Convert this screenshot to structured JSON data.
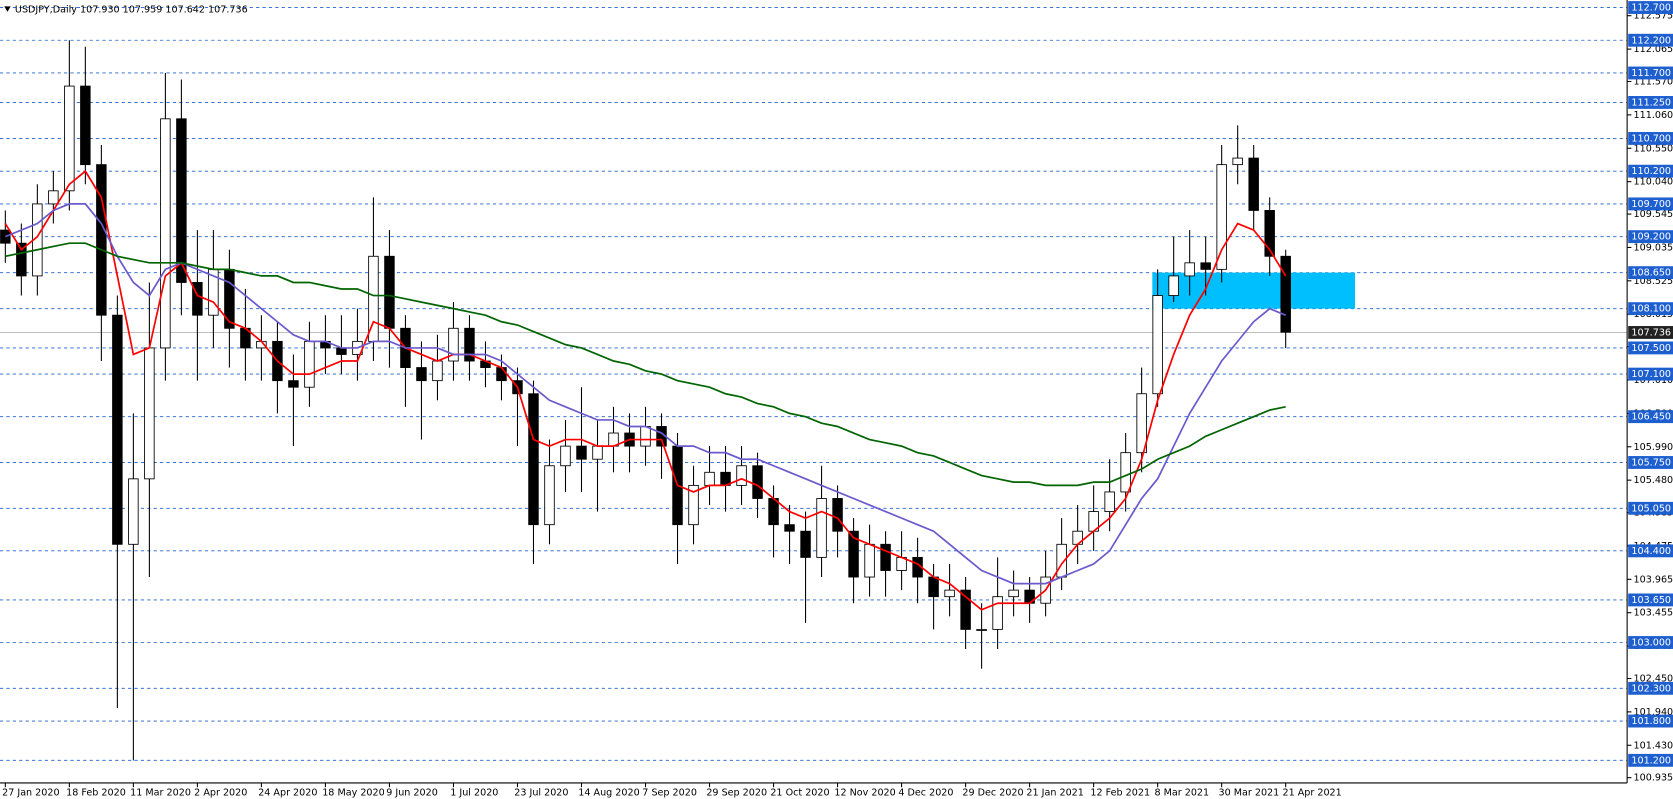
{
  "header": "USDJPY,Daily  107.930 107.959 107.642 107.736",
  "chart_data": {
    "type": "candlestick",
    "categories": [
      "27 Jan 2020",
      null,
      null,
      null,
      "18 Feb 2020",
      null,
      null,
      null,
      "11 Mar 2020",
      null,
      null,
      null,
      "2 Apr 2020",
      null,
      null,
      null,
      "24 Apr 2020",
      null,
      null,
      null,
      "18 May 2020",
      null,
      null,
      null,
      "9 Jun 2020",
      null,
      null,
      null,
      "1 Jul 2020",
      null,
      null,
      null,
      "23 Jul 2020",
      null,
      null,
      null,
      "14 Aug 2020",
      null,
      null,
      null,
      "7 Sep 2020",
      null,
      null,
      null,
      "29 Sep 2020",
      null,
      null,
      null,
      "21 Oct 2020",
      null,
      null,
      null,
      "12 Nov 2020",
      null,
      null,
      null,
      "4 Dec 2020",
      null,
      null,
      null,
      "29 Dec 2020",
      null,
      null,
      null,
      "21 Jan 2021",
      null,
      null,
      null,
      "12 Feb 2021",
      null,
      null,
      null,
      "8 Mar 2021",
      null,
      null,
      null,
      "30 Mar 2021",
      null,
      null,
      null,
      "21 Apr 2021"
    ],
    "open": [
      109.3,
      109.1,
      108.6,
      109.7,
      109.9,
      111.5,
      110.3,
      108.0,
      104.5,
      105.5,
      107.5,
      111.0,
      108.5,
      108.0,
      108.7,
      107.8,
      107.5,
      107.6,
      107.0,
      106.9,
      107.6,
      107.5,
      107.4,
      107.6,
      108.9,
      107.8,
      107.2,
      107.0,
      107.3,
      107.8,
      107.3,
      107.2,
      107.0,
      106.8,
      104.8,
      105.7,
      106.0,
      105.8,
      106.0,
      106.2,
      106.0,
      106.3,
      106.0,
      104.8,
      105.4,
      105.6,
      105.4,
      105.7,
      105.2,
      104.8,
      104.7,
      104.3,
      105.2,
      104.7,
      104.0,
      104.5,
      104.1,
      104.3,
      104.0,
      103.7,
      103.8,
      103.2,
      103.2,
      103.7,
      103.8,
      103.6,
      104.0,
      104.5,
      104.7,
      105.0,
      105.3,
      105.9,
      106.8,
      108.3,
      108.6,
      108.8,
      108.7,
      110.3,
      110.4,
      109.6,
      108.9
    ],
    "high": [
      109.6,
      109.4,
      110.0,
      110.2,
      112.2,
      112.1,
      110.6,
      108.3,
      106.5,
      108.5,
      111.7,
      111.6,
      109.3,
      109.3,
      109.0,
      108.4,
      108.0,
      107.9,
      107.4,
      107.9,
      108.0,
      108.0,
      108.1,
      109.8,
      109.3,
      108.0,
      107.6,
      107.7,
      108.2,
      108.0,
      107.6,
      107.4,
      107.2,
      107.0,
      106.1,
      106.4,
      106.9,
      106.4,
      106.6,
      106.5,
      106.6,
      106.5,
      106.2,
      105.7,
      106.0,
      106.0,
      106.0,
      105.9,
      105.4,
      105.1,
      105.0,
      105.7,
      105.4,
      104.9,
      104.8,
      104.7,
      104.7,
      104.6,
      104.2,
      104.2,
      104.0,
      103.6,
      104.3,
      104.1,
      104.0,
      104.4,
      104.9,
      105.1,
      105.4,
      105.8,
      106.2,
      107.2,
      108.7,
      109.2,
      109.3,
      109.2,
      110.6,
      110.9,
      110.6,
      109.8,
      109.0
    ],
    "low": [
      108.8,
      108.3,
      108.3,
      109.4,
      109.6,
      110.0,
      107.3,
      102.0,
      101.2,
      104.0,
      107.0,
      108.0,
      107.0,
      107.5,
      107.2,
      107.0,
      107.0,
      106.5,
      106.0,
      106.6,
      107.1,
      107.1,
      107.0,
      107.3,
      107.2,
      106.6,
      106.1,
      106.7,
      107.0,
      107.0,
      106.9,
      106.7,
      106.0,
      104.2,
      104.5,
      105.3,
      105.3,
      105.0,
      105.6,
      105.6,
      105.7,
      105.5,
      104.2,
      104.5,
      105.1,
      105.0,
      105.1,
      104.9,
      104.3,
      104.2,
      103.3,
      104.0,
      104.3,
      103.6,
      103.7,
      103.7,
      103.8,
      103.6,
      103.2,
      103.4,
      102.9,
      102.6,
      102.9,
      103.4,
      103.3,
      103.4,
      103.8,
      104.2,
      104.4,
      104.7,
      105.0,
      105.6,
      106.6,
      108.2,
      108.3,
      108.3,
      108.5,
      110.0,
      109.3,
      108.6,
      107.5
    ],
    "close": [
      109.1,
      108.6,
      109.7,
      109.9,
      111.5,
      110.3,
      108.0,
      104.5,
      105.5,
      107.5,
      111.0,
      108.5,
      108.0,
      108.7,
      107.8,
      107.5,
      107.6,
      107.0,
      106.9,
      107.6,
      107.5,
      107.4,
      107.6,
      108.9,
      107.8,
      107.2,
      107.0,
      107.3,
      107.8,
      107.3,
      107.2,
      107.0,
      106.8,
      104.8,
      105.7,
      106.0,
      105.8,
      106.0,
      106.2,
      106.0,
      106.3,
      106.0,
      104.8,
      105.4,
      105.6,
      105.4,
      105.7,
      105.2,
      104.8,
      104.7,
      104.3,
      105.2,
      104.7,
      104.0,
      104.5,
      104.1,
      104.3,
      104.0,
      103.7,
      103.8,
      103.2,
      103.2,
      103.7,
      103.8,
      103.6,
      104.0,
      104.5,
      104.7,
      105.0,
      105.3,
      105.9,
      106.8,
      108.3,
      108.6,
      108.8,
      108.7,
      110.3,
      110.4,
      109.6,
      108.9,
      107.74
    ],
    "series": [
      {
        "color": "#ff0000",
        "values": [
          109.4,
          109.0,
          109.2,
          109.6,
          110.0,
          110.2,
          109.8,
          108.6,
          107.4,
          107.5,
          108.6,
          108.8,
          108.3,
          108.2,
          107.9,
          107.8,
          107.6,
          107.3,
          107.1,
          107.1,
          107.2,
          107.3,
          107.3,
          107.9,
          107.8,
          107.5,
          107.4,
          107.3,
          107.4,
          107.4,
          107.3,
          107.2,
          106.9,
          106.1,
          106.0,
          106.1,
          106.1,
          106.0,
          106.0,
          106.1,
          106.1,
          106.1,
          105.4,
          105.3,
          105.4,
          105.4,
          105.5,
          105.4,
          105.2,
          105.0,
          104.9,
          105.0,
          104.9,
          104.6,
          104.5,
          104.4,
          104.3,
          104.2,
          104.0,
          103.9,
          103.7,
          103.5,
          103.6,
          103.6,
          103.6,
          103.8,
          104.2,
          104.5,
          104.7,
          104.9,
          105.2,
          105.8,
          106.7,
          107.4,
          108.0,
          108.4,
          109.0,
          109.4,
          109.3,
          109.0,
          108.6
        ]
      },
      {
        "color": "#6a5acd",
        "values": [
          109.2,
          109.3,
          109.4,
          109.6,
          109.7,
          109.7,
          109.4,
          108.9,
          108.5,
          108.3,
          108.7,
          108.8,
          108.7,
          108.6,
          108.5,
          108.3,
          108.1,
          107.9,
          107.7,
          107.6,
          107.6,
          107.5,
          107.5,
          107.6,
          107.6,
          107.5,
          107.5,
          107.5,
          107.4,
          107.4,
          107.4,
          107.3,
          107.1,
          106.9,
          106.7,
          106.6,
          106.5,
          106.4,
          106.4,
          106.3,
          106.3,
          106.2,
          106.0,
          106.0,
          105.9,
          105.9,
          105.8,
          105.8,
          105.7,
          105.6,
          105.5,
          105.4,
          105.3,
          105.2,
          105.1,
          105.0,
          104.9,
          104.8,
          104.7,
          104.5,
          104.3,
          104.1,
          104.0,
          103.9,
          103.9,
          103.9,
          104.0,
          104.1,
          104.2,
          104.4,
          104.8,
          105.2,
          105.5,
          106.0,
          106.5,
          106.9,
          107.3,
          107.6,
          107.9,
          108.1,
          108.0
        ]
      },
      {
        "color": "#006400",
        "values": [
          108.9,
          108.95,
          109.0,
          109.05,
          109.1,
          109.1,
          109.0,
          108.9,
          108.85,
          108.8,
          108.8,
          108.8,
          108.75,
          108.7,
          108.7,
          108.65,
          108.6,
          108.6,
          108.5,
          108.5,
          108.45,
          108.4,
          108.4,
          108.3,
          108.3,
          108.25,
          108.2,
          108.15,
          108.1,
          108.05,
          108.0,
          107.9,
          107.85,
          107.75,
          107.65,
          107.55,
          107.5,
          107.4,
          107.3,
          107.25,
          107.15,
          107.1,
          107.0,
          106.95,
          106.9,
          106.8,
          106.75,
          106.65,
          106.6,
          106.5,
          106.45,
          106.35,
          106.3,
          106.2,
          106.1,
          106.05,
          106.0,
          105.9,
          105.85,
          105.75,
          105.65,
          105.55,
          105.5,
          105.45,
          105.45,
          105.4,
          105.4,
          105.4,
          105.45,
          105.45,
          105.55,
          105.65,
          105.8,
          105.9,
          106.0,
          106.15,
          106.25,
          106.35,
          106.45,
          106.55,
          106.6
        ]
      }
    ],
    "ylim": [
      100.855,
      112.815
    ],
    "yticks": [
      112.575,
      112.065,
      {
        "value": 111.57,
        "label": "111.570"
      },
      {
        "value": 111.06,
        "label": "111.060"
      },
      {
        "value": 110.55,
        "label": "110.550"
      },
      {
        "value": 110.04,
        "label": "110.040"
      },
      109.545,
      109.035,
      108.525,
      108.015,
      {
        "value": 107.52,
        "label": "107.520"
      },
      {
        "value": 107.01,
        "label": "107.010"
      },
      {
        "value": 106.5,
        "label": "106.500"
      },
      {
        "value": 105.99,
        "label": "105.990"
      },
      {
        "value": 105.48,
        "label": "105.480"
      },
      104.985,
      104.475,
      103.965,
      103.455,
      102.945,
      {
        "value": 102.45,
        "label": "102.450"
      },
      {
        "value": 101.94,
        "label": "101.940"
      },
      {
        "value": 101.43,
        "label": "101.430"
      },
      100.935
    ],
    "levels": [
      {
        "value": 112.7,
        "label": "112.700"
      },
      {
        "value": 112.2,
        "label": "112.200"
      },
      {
        "value": 111.7,
        "label": "111.700"
      },
      {
        "value": 111.25,
        "label": "111.250"
      },
      {
        "value": 110.7,
        "label": "110.700"
      },
      {
        "value": 110.2,
        "label": "110.200"
      },
      {
        "value": 109.7,
        "label": "109.700"
      },
      {
        "value": 109.2,
        "label": "109.200"
      },
      {
        "value": 108.65,
        "label": "108.650"
      },
      {
        "value": 108.1,
        "label": "108.100"
      },
      {
        "value": 107.5,
        "label": "107.500"
      },
      {
        "value": 107.1,
        "label": "107.100"
      },
      {
        "value": 106.45,
        "label": "106.450"
      },
      {
        "value": 105.75,
        "label": "105.750"
      },
      {
        "value": 105.05,
        "label": "105.050"
      },
      {
        "value": 104.4,
        "label": "104.400"
      },
      {
        "value": 103.65,
        "label": "103.650"
      },
      {
        "value": 103.0,
        "label": "103.000"
      },
      {
        "value": 102.3,
        "label": "102.300"
      },
      {
        "value": 101.8,
        "label": "101.800"
      },
      {
        "value": 101.2,
        "label": "101.200"
      }
    ],
    "level_color": "#1e5fd0",
    "last_price": 107.736,
    "zone": [
      108.1,
      108.65
    ],
    "zone_color": "#00bfff"
  }
}
